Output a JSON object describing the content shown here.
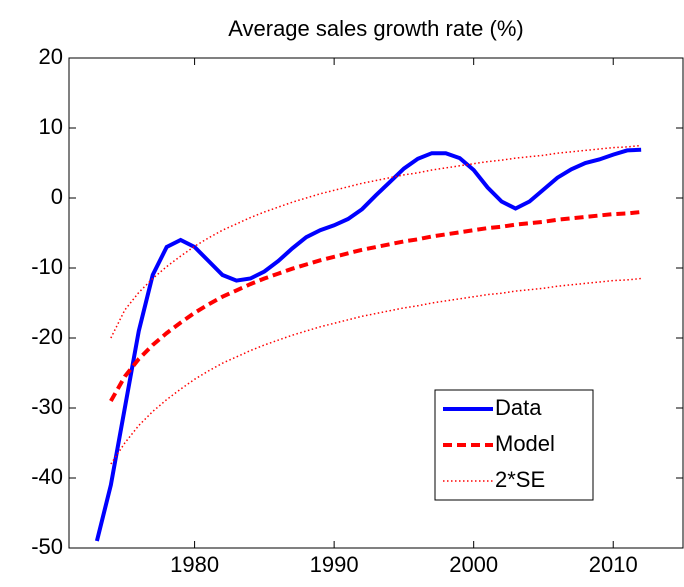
{
  "chart_data": {
    "type": "line",
    "title": "Average sales growth rate (%)",
    "x": [
      1973,
      1974,
      1975,
      1976,
      1977,
      1978,
      1979,
      1980,
      1981,
      1982,
      1983,
      1984,
      1985,
      1986,
      1987,
      1988,
      1989,
      1990,
      1991,
      1992,
      1993,
      1994,
      1995,
      1996,
      1997,
      1998,
      1999,
      2000,
      2001,
      2002,
      2003,
      2004,
      2005,
      2006,
      2007,
      2008,
      2009,
      2010,
      2011,
      2012
    ],
    "series": [
      {
        "name": "Data",
        "color": "#0000ff",
        "style": "solid",
        "values": [
          -49,
          -41,
          -30,
          -19,
          -11,
          -7,
          -6,
          -7,
          -9,
          -11,
          -11.8,
          -11.5,
          -10.5,
          -9,
          -7.2,
          -5.6,
          -4.6,
          -3.9,
          -3,
          -1.6,
          0.4,
          2.3,
          4.2,
          5.6,
          6.4,
          6.4,
          5.7,
          4,
          1.5,
          -0.5,
          -1.5,
          -0.5,
          1.2,
          2.9,
          4.1,
          5,
          5.5,
          6.2,
          6.8,
          6.9
        ]
      },
      {
        "name": "Model",
        "color": "#ff0000",
        "style": "dashed",
        "values": [
          null,
          -29,
          -25.5,
          -23,
          -21,
          -19.3,
          -17.8,
          -16.4,
          -15.2,
          -14.1,
          -13.2,
          -12.3,
          -11.5,
          -10.8,
          -10.1,
          -9.5,
          -8.9,
          -8.4,
          -7.9,
          -7.4,
          -7,
          -6.6,
          -6.2,
          -5.9,
          -5.5,
          -5.2,
          -4.9,
          -4.6,
          -4.3,
          -4.1,
          -3.8,
          -3.6,
          -3.4,
          -3.1,
          -2.9,
          -2.7,
          -2.5,
          -2.3,
          -2.2,
          -2
        ]
      },
      {
        "name": "2*SE",
        "color": "#ff0000",
        "style": "dotted",
        "values": [
          null,
          -20,
          -16,
          -13.5,
          -11.5,
          -9.8,
          -8.3,
          -6.9,
          -5.7,
          -4.6,
          -3.7,
          -2.8,
          -2,
          -1.3,
          -0.6,
          0,
          0.6,
          1.1,
          1.6,
          2.1,
          2.5,
          2.9,
          3.3,
          3.6,
          4,
          4.3,
          4.6,
          4.9,
          5.2,
          5.4,
          5.7,
          5.9,
          6.1,
          6.4,
          6.6,
          6.8,
          7,
          7.2,
          7.3,
          7.5
        ],
        "lower": [
          null,
          -38,
          -35,
          -32.5,
          -30.5,
          -28.8,
          -27.3,
          -25.9,
          -24.7,
          -23.6,
          -22.7,
          -21.8,
          -21,
          -20.3,
          -19.6,
          -19,
          -18.4,
          -17.9,
          -17.4,
          -16.9,
          -16.5,
          -16.1,
          -15.7,
          -15.4,
          -15,
          -14.7,
          -14.4,
          -14.1,
          -13.8,
          -13.6,
          -13.3,
          -13.1,
          -12.9,
          -12.6,
          -12.4,
          -12.2,
          -12,
          -11.8,
          -11.7,
          -11.5
        ]
      }
    ],
    "xlim": [
      1971,
      2015
    ],
    "xticks": [
      1980,
      1990,
      2000,
      2010
    ],
    "ylim": [
      -50,
      20
    ],
    "yticks": [
      -50,
      -40,
      -30,
      -20,
      -10,
      0,
      10,
      20
    ],
    "grid": false,
    "legend": "lower-right"
  }
}
